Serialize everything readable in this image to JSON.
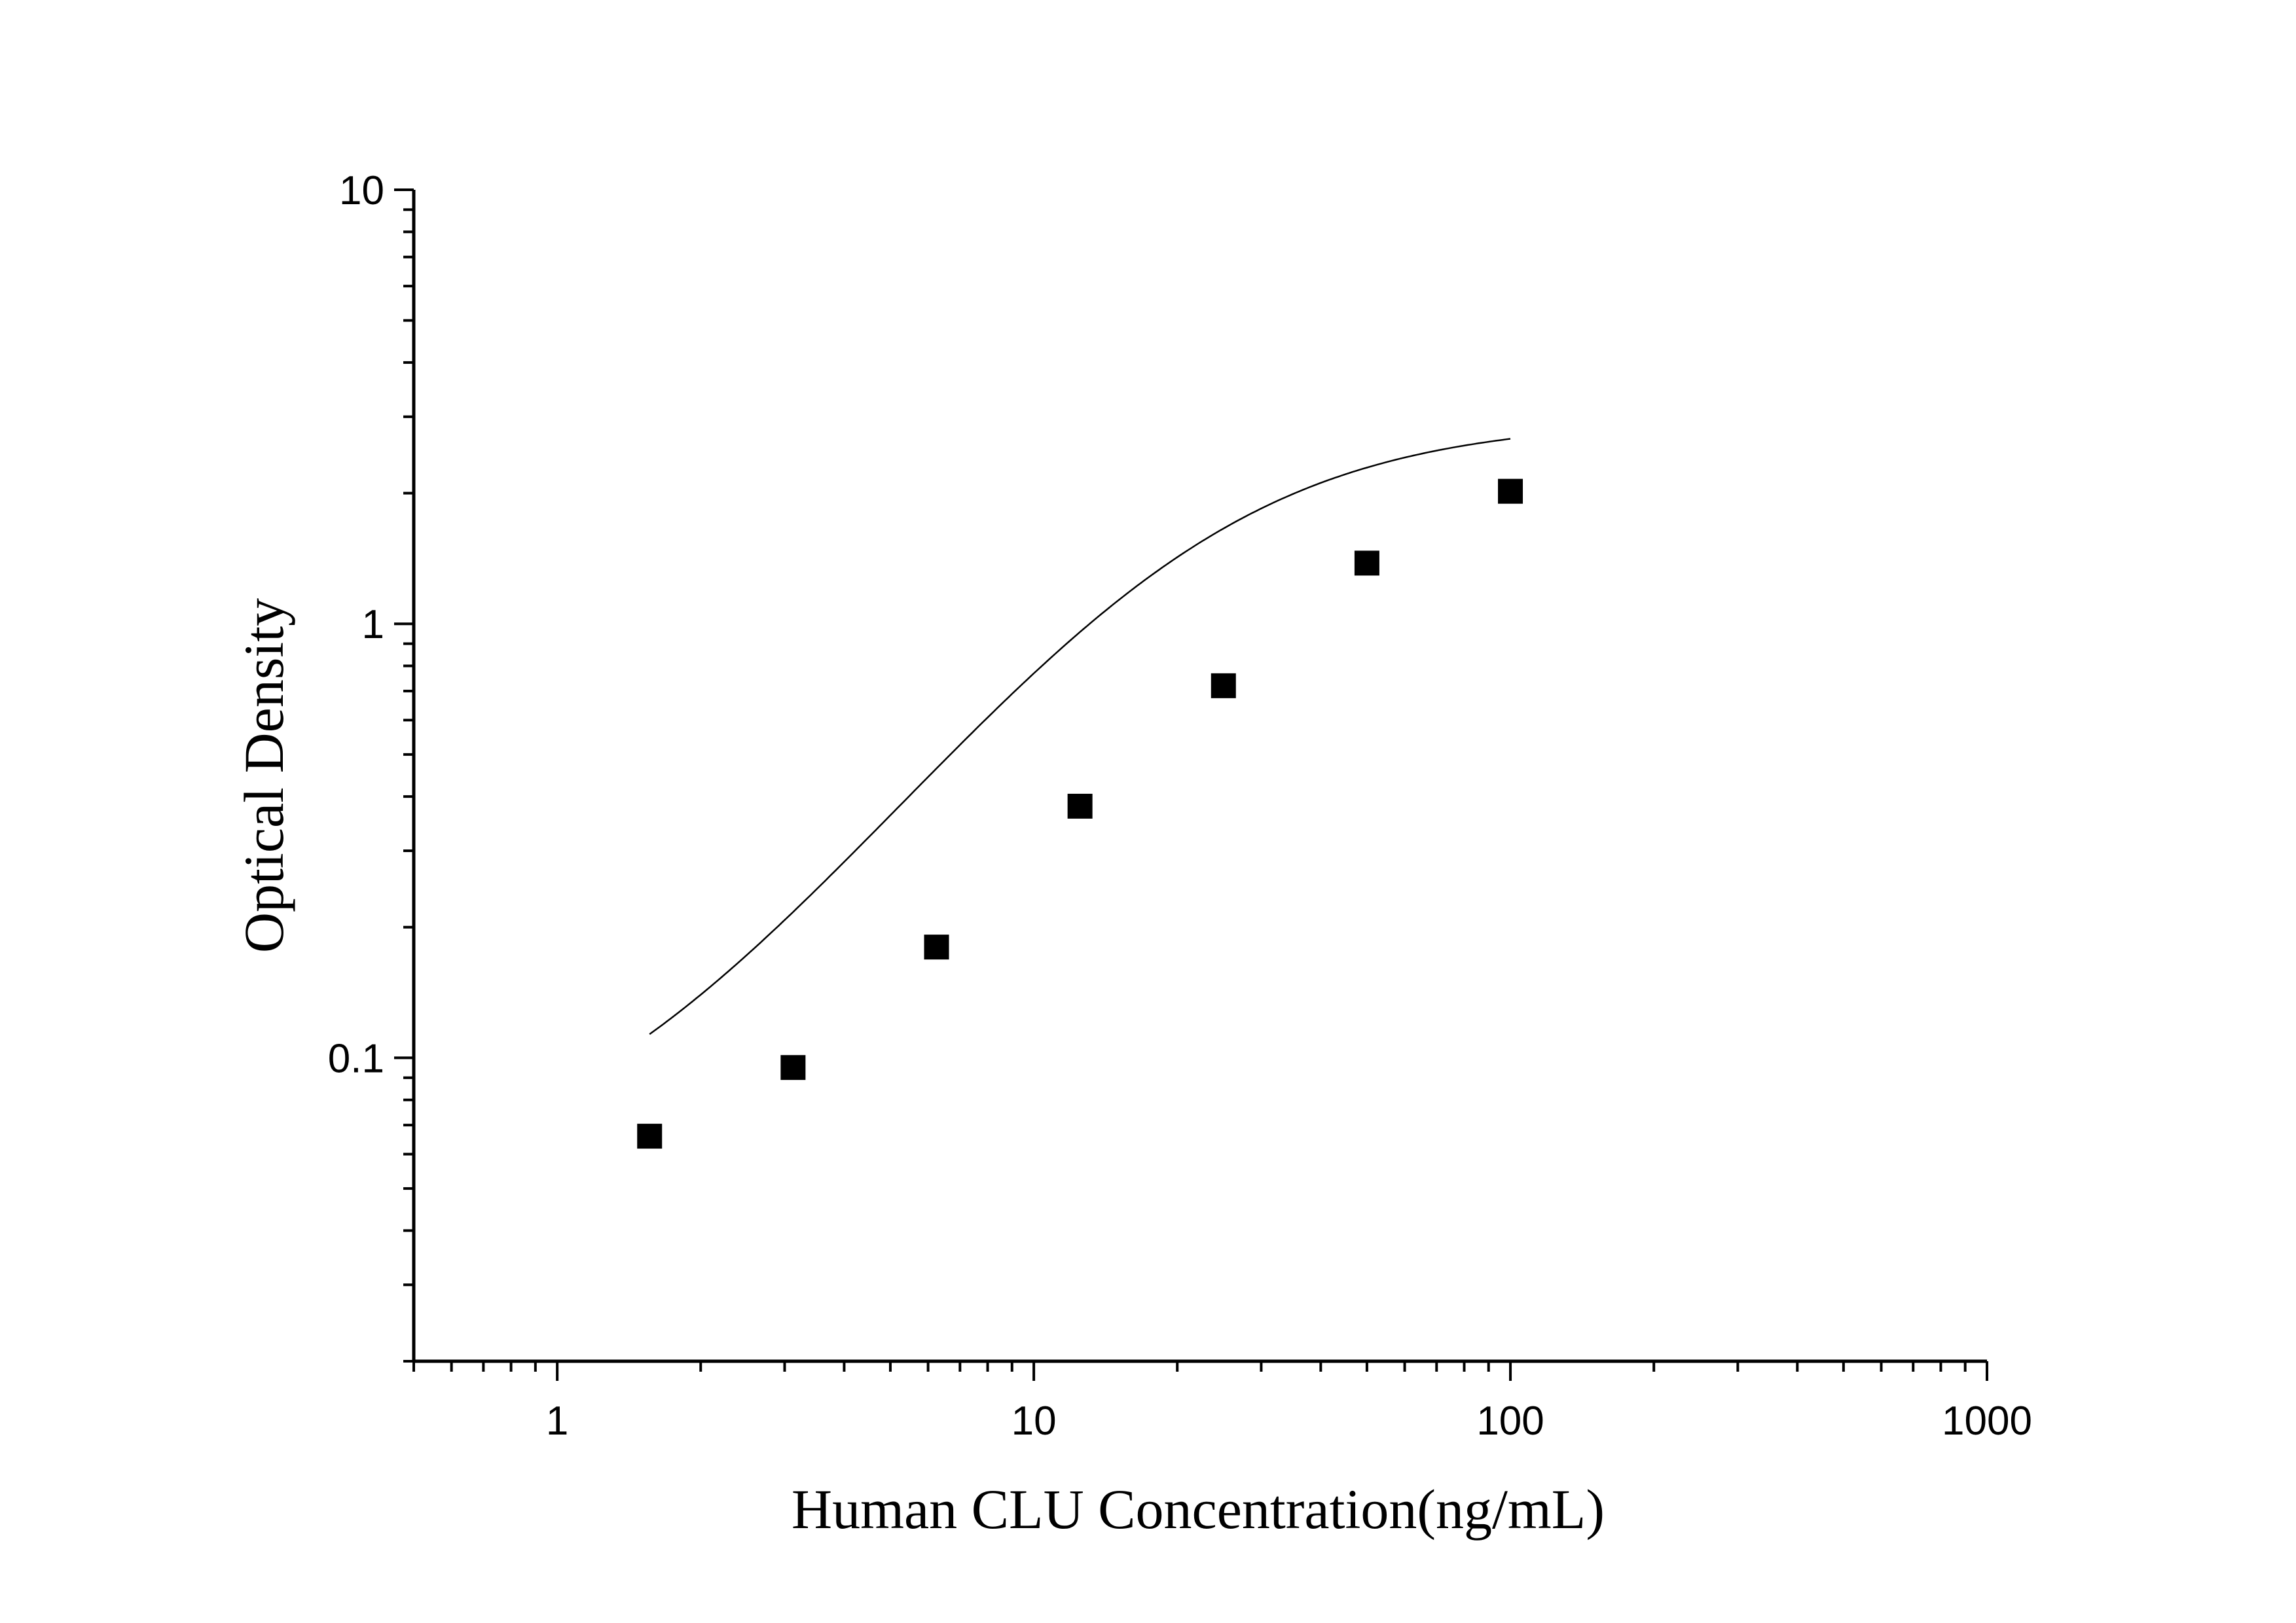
{
  "chart_data": {
    "type": "scatter",
    "xlabel": "Human CLU Concentration(ng/mL)",
    "ylabel": "Optical Density",
    "x_scale": "log",
    "y_scale": "log",
    "xlim": [
      0.5,
      1000
    ],
    "ylim": [
      0.02,
      10
    ],
    "x_ticks": [
      "1",
      "10",
      "100",
      "1000"
    ],
    "y_ticks": [
      "0.1",
      "1",
      "10"
    ],
    "grid": false,
    "legend": "none",
    "series": [
      {
        "marker": "square",
        "color": "#000000",
        "x": [
          1.5625,
          3.125,
          6.25,
          12.5,
          25,
          50,
          100
        ],
        "y": [
          0.066,
          0.095,
          0.18,
          0.38,
          0.72,
          1.38,
          2.02
        ]
      }
    ],
    "fit_curve": {
      "type": "4-parameter logistic",
      "color": "#000000",
      "x_range": [
        1.5625,
        100
      ],
      "params": {
        "bottom": 0.05,
        "top": 2.95,
        "ec50": 21.5,
        "hill": 1.45
      }
    }
  }
}
